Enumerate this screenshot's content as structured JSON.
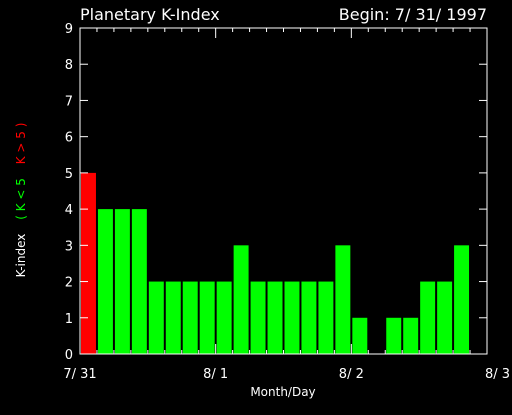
{
  "header": {
    "title": "Planetary K-Index",
    "begin": "Begin: 7/ 31/ 1997"
  },
  "chart_data": {
    "type": "bar",
    "title": "Planetary K-Index",
    "xlabel": "Month/Day",
    "ylabel_parts": [
      {
        "text": "K-index",
        "color": "#ffffff"
      },
      {
        "text": "( K < 5",
        "color": "#00ff00"
      },
      {
        "text": "K > 5 )",
        "color": "#ff0000"
      }
    ],
    "ylim": [
      0,
      9
    ],
    "yticks": [
      "0",
      "1",
      "2",
      "3",
      "4",
      "5",
      "6",
      "7",
      "8",
      "9"
    ],
    "xlim_days": [
      0,
      3
    ],
    "xticks": [
      "7/ 31",
      "8/ 1",
      "8/ 2",
      "8/ 3"
    ],
    "bins_per_day": 8,
    "values": [
      5,
      4,
      4,
      4,
      2,
      2,
      2,
      2,
      2,
      3,
      2,
      2,
      2,
      2,
      2,
      3,
      1,
      0,
      1,
      1,
      2,
      2,
      3,
      0
    ],
    "threshold": 5,
    "colors": {
      "below": "#00ff00",
      "at_or_above": "#ff0000",
      "axis": "#ffffff",
      "background": "#000000"
    }
  }
}
